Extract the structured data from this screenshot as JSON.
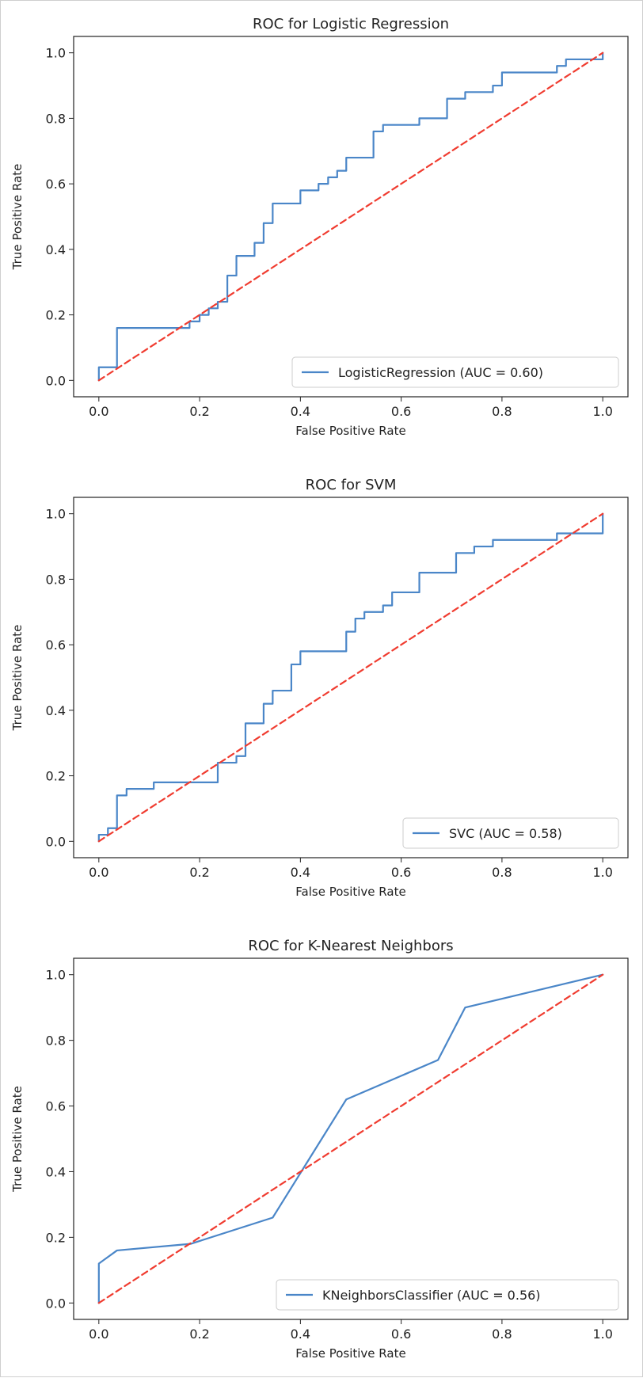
{
  "chart_data": [
    {
      "type": "line",
      "title": "ROC for Logistic Regression",
      "xlabel": "False Positive Rate",
      "ylabel": "True Positive Rate",
      "xlim": [
        -0.05,
        1.05
      ],
      "ylim": [
        -0.05,
        1.05
      ],
      "xticks": [
        0.0,
        0.2,
        0.4,
        0.6,
        0.8,
        1.0
      ],
      "yticks": [
        0.0,
        0.2,
        0.4,
        0.6,
        0.8,
        1.0
      ],
      "xtick_labels": [
        "0.0",
        "0.2",
        "0.4",
        "0.6",
        "0.8",
        "1.0"
      ],
      "ytick_labels": [
        "0.0",
        "0.2",
        "0.4",
        "0.6",
        "0.8",
        "1.0"
      ],
      "grid": false,
      "legend_position": "lower-right",
      "series": [
        {
          "name": "LogisticRegression (AUC = 0.60)",
          "color": "#4a86c8",
          "style": "solid",
          "x": [
            0.0,
            0.0,
            0.036,
            0.036,
            0.18,
            0.18,
            0.2,
            0.2,
            0.218,
            0.218,
            0.236,
            0.236,
            0.255,
            0.255,
            0.273,
            0.273,
            0.309,
            0.309,
            0.327,
            0.327,
            0.345,
            0.345,
            0.4,
            0.4,
            0.436,
            0.436,
            0.455,
            0.455,
            0.473,
            0.473,
            0.491,
            0.491,
            0.545,
            0.545,
            0.564,
            0.564,
            0.636,
            0.636,
            0.691,
            0.691,
            0.727,
            0.727,
            0.782,
            0.782,
            0.8,
            0.8,
            0.909,
            0.909,
            0.927,
            0.927,
            1.0,
            1.0
          ],
          "y": [
            0.0,
            0.04,
            0.04,
            0.16,
            0.16,
            0.18,
            0.18,
            0.2,
            0.2,
            0.22,
            0.22,
            0.24,
            0.24,
            0.32,
            0.32,
            0.38,
            0.38,
            0.42,
            0.42,
            0.48,
            0.48,
            0.54,
            0.54,
            0.58,
            0.58,
            0.6,
            0.6,
            0.62,
            0.62,
            0.64,
            0.64,
            0.68,
            0.68,
            0.76,
            0.76,
            0.78,
            0.78,
            0.8,
            0.8,
            0.86,
            0.86,
            0.88,
            0.88,
            0.9,
            0.9,
            0.94,
            0.94,
            0.96,
            0.96,
            0.98,
            0.98,
            1.0
          ]
        },
        {
          "name": "",
          "color": "#f03c30",
          "style": "dashed",
          "x": [
            0.0,
            1.0
          ],
          "y": [
            0.0,
            1.0
          ]
        }
      ]
    },
    {
      "type": "line",
      "title": "ROC for SVM",
      "xlabel": "False Positive Rate",
      "ylabel": "True Positive Rate",
      "xlim": [
        -0.05,
        1.05
      ],
      "ylim": [
        -0.05,
        1.05
      ],
      "xticks": [
        0.0,
        0.2,
        0.4,
        0.6,
        0.8,
        1.0
      ],
      "yticks": [
        0.0,
        0.2,
        0.4,
        0.6,
        0.8,
        1.0
      ],
      "xtick_labels": [
        "0.0",
        "0.2",
        "0.4",
        "0.6",
        "0.8",
        "1.0"
      ],
      "ytick_labels": [
        "0.0",
        "0.2",
        "0.4",
        "0.6",
        "0.8",
        "1.0"
      ],
      "grid": false,
      "legend_position": "lower-right",
      "series": [
        {
          "name": "SVC (AUC = 0.58)",
          "color": "#4a86c8",
          "style": "solid",
          "x": [
            0.0,
            0.0,
            0.018,
            0.018,
            0.036,
            0.036,
            0.055,
            0.055,
            0.109,
            0.109,
            0.236,
            0.236,
            0.273,
            0.273,
            0.291,
            0.291,
            0.327,
            0.327,
            0.345,
            0.345,
            0.382,
            0.382,
            0.4,
            0.4,
            0.491,
            0.491,
            0.509,
            0.509,
            0.527,
            0.527,
            0.564,
            0.564,
            0.582,
            0.582,
            0.636,
            0.636,
            0.709,
            0.709,
            0.745,
            0.745,
            0.782,
            0.782,
            0.909,
            0.909,
            1.0,
            1.0
          ],
          "y": [
            0.0,
            0.02,
            0.02,
            0.04,
            0.04,
            0.14,
            0.14,
            0.16,
            0.16,
            0.18,
            0.18,
            0.24,
            0.24,
            0.26,
            0.26,
            0.36,
            0.36,
            0.42,
            0.42,
            0.46,
            0.46,
            0.54,
            0.54,
            0.58,
            0.58,
            0.64,
            0.64,
            0.68,
            0.68,
            0.7,
            0.7,
            0.72,
            0.72,
            0.76,
            0.76,
            0.82,
            0.82,
            0.88,
            0.88,
            0.9,
            0.9,
            0.92,
            0.92,
            0.94,
            0.94,
            1.0
          ]
        },
        {
          "name": "",
          "color": "#f03c30",
          "style": "dashed",
          "x": [
            0.0,
            1.0
          ],
          "y": [
            0.0,
            1.0
          ]
        }
      ]
    },
    {
      "type": "line",
      "title": "ROC for K-Nearest Neighbors",
      "xlabel": "False Positive Rate",
      "ylabel": "True Positive Rate",
      "xlim": [
        -0.05,
        1.05
      ],
      "ylim": [
        -0.05,
        1.05
      ],
      "xticks": [
        0.0,
        0.2,
        0.4,
        0.6,
        0.8,
        1.0
      ],
      "yticks": [
        0.0,
        0.2,
        0.4,
        0.6,
        0.8,
        1.0
      ],
      "xtick_labels": [
        "0.0",
        "0.2",
        "0.4",
        "0.6",
        "0.8",
        "1.0"
      ],
      "ytick_labels": [
        "0.0",
        "0.2",
        "0.4",
        "0.6",
        "0.8",
        "1.0"
      ],
      "grid": false,
      "legend_position": "lower-right",
      "series": [
        {
          "name": "KNeighborsClassifier (AUC = 0.56)",
          "color": "#4a86c8",
          "style": "solid",
          "x": [
            0.0,
            0.0,
            0.036,
            0.182,
            0.345,
            0.491,
            0.673,
            0.727,
            1.0
          ],
          "y": [
            0.0,
            0.12,
            0.16,
            0.18,
            0.26,
            0.62,
            0.74,
            0.9,
            1.0
          ]
        },
        {
          "name": "",
          "color": "#f03c30",
          "style": "dashed",
          "x": [
            0.0,
            1.0
          ],
          "y": [
            0.0,
            1.0
          ]
        }
      ]
    }
  ]
}
